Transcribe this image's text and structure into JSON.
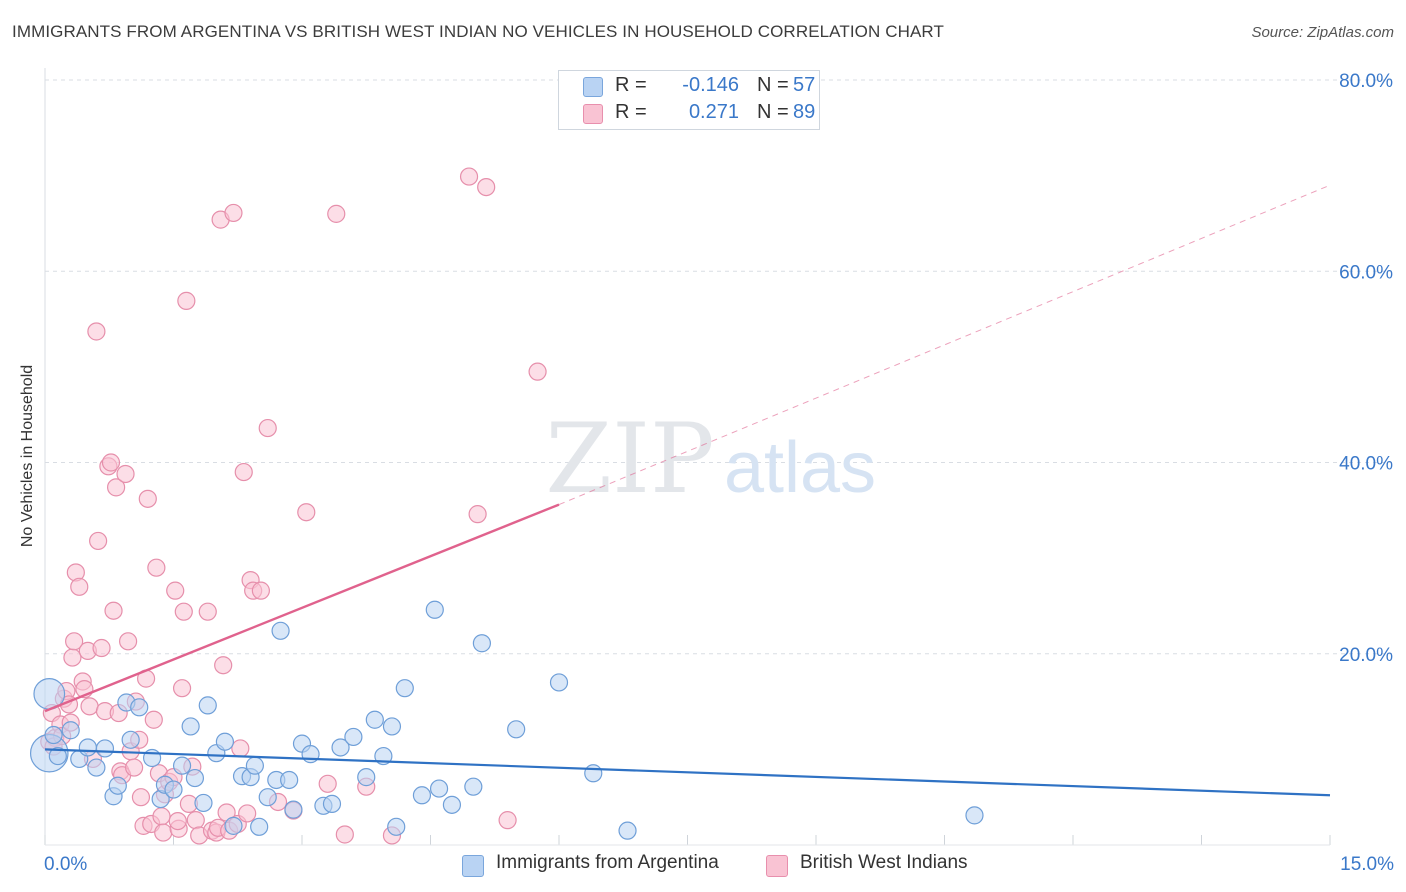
{
  "title": "IMMIGRANTS FROM ARGENTINA VS BRITISH WEST INDIAN NO VEHICLES IN HOUSEHOLD CORRELATION CHART",
  "source": "Source: ZipAtlas.com",
  "watermark": {
    "zip": "ZIP",
    "atlas": "atlas"
  },
  "legend_top": {
    "rows": [
      {
        "r_label": "R =",
        "r_value": "-0.146",
        "n_label": "N =",
        "n_value": "57"
      },
      {
        "r_label": "R =",
        "r_value": "0.271",
        "n_label": "N =",
        "n_value": "89"
      }
    ]
  },
  "legend_bottom": {
    "items": [
      "Immigrants from Argentina",
      "British West Indians"
    ]
  },
  "colors": {
    "blue_fill": "#b9d3f3",
    "blue_stroke": "#6f9fd8",
    "blue_line": "#2f72c4",
    "pink_fill": "#f9c3d3",
    "pink_stroke": "#e68fab",
    "pink_line": "#e0628d",
    "grid": "#d9dde3",
    "tick_label": "#3a78c9"
  },
  "chart_data": {
    "type": "scatter",
    "title": "IMMIGRANTS FROM ARGENTINA VS BRITISH WEST INDIAN NO VEHICLES IN HOUSEHOLD CORRELATION CHART",
    "xlabel": "",
    "ylabel": "No Vehicles in Household",
    "xlim": [
      0,
      15
    ],
    "ylim": [
      0,
      80
    ],
    "x_tick_labels": [
      "0.0%",
      "15.0%"
    ],
    "y_ticks": [
      20,
      40,
      60,
      80
    ],
    "y_tick_labels": [
      "20.0%",
      "40.0%",
      "60.0%",
      "80.0%"
    ],
    "grid": true,
    "series": [
      {
        "name": "Immigrants from Argentina",
        "r": -0.146,
        "n": 57,
        "trend": {
          "x": [
            0,
            15
          ],
          "y": [
            10.0,
            5.2
          ],
          "dashed_extension": false
        },
        "points": [
          {
            "x": 0.05,
            "y": 15.8,
            "s": 1.8
          },
          {
            "x": 0.05,
            "y": 9.6,
            "s": 2.2
          },
          {
            "x": 0.1,
            "y": 11.5
          },
          {
            "x": 0.15,
            "y": 9.3
          },
          {
            "x": 0.3,
            "y": 12.0
          },
          {
            "x": 0.4,
            "y": 9.0
          },
          {
            "x": 0.5,
            "y": 10.2
          },
          {
            "x": 0.6,
            "y": 8.1
          },
          {
            "x": 0.7,
            "y": 10.1
          },
          {
            "x": 0.8,
            "y": 5.1
          },
          {
            "x": 0.85,
            "y": 6.2
          },
          {
            "x": 0.95,
            "y": 14.9
          },
          {
            "x": 1.0,
            "y": 11.0
          },
          {
            "x": 1.1,
            "y": 14.4
          },
          {
            "x": 1.25,
            "y": 9.1
          },
          {
            "x": 1.35,
            "y": 4.8
          },
          {
            "x": 1.4,
            "y": 6.3
          },
          {
            "x": 1.5,
            "y": 5.8
          },
          {
            "x": 1.6,
            "y": 8.3
          },
          {
            "x": 1.7,
            "y": 12.4
          },
          {
            "x": 1.75,
            "y": 7.0
          },
          {
            "x": 1.85,
            "y": 4.4
          },
          {
            "x": 1.9,
            "y": 14.6
          },
          {
            "x": 2.0,
            "y": 9.6
          },
          {
            "x": 2.1,
            "y": 10.8
          },
          {
            "x": 2.2,
            "y": 2.0
          },
          {
            "x": 2.3,
            "y": 7.2
          },
          {
            "x": 2.4,
            "y": 7.1
          },
          {
            "x": 2.45,
            "y": 8.3
          },
          {
            "x": 2.5,
            "y": 1.9
          },
          {
            "x": 2.6,
            "y": 5.0
          },
          {
            "x": 2.7,
            "y": 6.8
          },
          {
            "x": 2.75,
            "y": 22.4
          },
          {
            "x": 2.85,
            "y": 6.8
          },
          {
            "x": 2.9,
            "y": 3.7
          },
          {
            "x": 3.0,
            "y": 10.6
          },
          {
            "x": 3.1,
            "y": 9.5
          },
          {
            "x": 3.25,
            "y": 4.1
          },
          {
            "x": 3.35,
            "y": 4.3
          },
          {
            "x": 3.45,
            "y": 10.2
          },
          {
            "x": 3.6,
            "y": 11.3
          },
          {
            "x": 3.75,
            "y": 7.1
          },
          {
            "x": 3.85,
            "y": 13.1
          },
          {
            "x": 3.95,
            "y": 9.3
          },
          {
            "x": 4.05,
            "y": 12.4
          },
          {
            "x": 4.1,
            "y": 1.9
          },
          {
            "x": 4.2,
            "y": 16.4
          },
          {
            "x": 4.4,
            "y": 5.2
          },
          {
            "x": 4.55,
            "y": 24.6
          },
          {
            "x": 4.6,
            "y": 5.9
          },
          {
            "x": 4.75,
            "y": 4.2
          },
          {
            "x": 5.0,
            "y": 6.1
          },
          {
            "x": 5.1,
            "y": 21.1
          },
          {
            "x": 5.5,
            "y": 12.1
          },
          {
            "x": 6.0,
            "y": 17.0
          },
          {
            "x": 6.4,
            "y": 7.5
          },
          {
            "x": 6.8,
            "y": 1.5
          },
          {
            "x": 10.85,
            "y": 3.1
          }
        ]
      },
      {
        "name": "British West Indians",
        "r": 0.271,
        "n": 89,
        "trend": {
          "x": [
            0,
            6.0
          ],
          "y": [
            14.0,
            35.6
          ],
          "extension": {
            "x": [
              6.0,
              15.0
            ],
            "y": [
              35.6,
              69.0
            ]
          }
        },
        "points": [
          {
            "x": 0.05,
            "y": 10.8
          },
          {
            "x": 0.08,
            "y": 13.8
          },
          {
            "x": 0.12,
            "y": 11.2
          },
          {
            "x": 0.18,
            "y": 12.6
          },
          {
            "x": 0.22,
            "y": 15.3
          },
          {
            "x": 0.25,
            "y": 16.1
          },
          {
            "x": 0.28,
            "y": 14.7
          },
          {
            "x": 0.32,
            "y": 19.6
          },
          {
            "x": 0.34,
            "y": 21.3
          },
          {
            "x": 0.36,
            "y": 28.5
          },
          {
            "x": 0.4,
            "y": 27.0
          },
          {
            "x": 0.44,
            "y": 17.1
          },
          {
            "x": 0.46,
            "y": 16.3
          },
          {
            "x": 0.5,
            "y": 20.3
          },
          {
            "x": 0.52,
            "y": 14.5
          },
          {
            "x": 0.56,
            "y": 9.0
          },
          {
            "x": 0.6,
            "y": 53.7
          },
          {
            "x": 0.62,
            "y": 31.8
          },
          {
            "x": 0.66,
            "y": 20.6
          },
          {
            "x": 0.7,
            "y": 14.0
          },
          {
            "x": 0.74,
            "y": 39.6
          },
          {
            "x": 0.77,
            "y": 40.0
          },
          {
            "x": 0.8,
            "y": 24.5
          },
          {
            "x": 0.83,
            "y": 37.4
          },
          {
            "x": 0.86,
            "y": 13.8
          },
          {
            "x": 0.88,
            "y": 7.7
          },
          {
            "x": 0.9,
            "y": 7.3
          },
          {
            "x": 0.94,
            "y": 38.8
          },
          {
            "x": 0.97,
            "y": 21.3
          },
          {
            "x": 1.0,
            "y": 9.8
          },
          {
            "x": 1.04,
            "y": 8.1
          },
          {
            "x": 1.06,
            "y": 15.0
          },
          {
            "x": 1.1,
            "y": 11.0
          },
          {
            "x": 1.12,
            "y": 5.0
          },
          {
            "x": 1.15,
            "y": 2.0
          },
          {
            "x": 1.18,
            "y": 17.4
          },
          {
            "x": 1.2,
            "y": 36.2
          },
          {
            "x": 1.24,
            "y": 2.2
          },
          {
            "x": 1.27,
            "y": 13.1
          },
          {
            "x": 1.3,
            "y": 29.0
          },
          {
            "x": 1.33,
            "y": 7.5
          },
          {
            "x": 1.36,
            "y": 3.0
          },
          {
            "x": 1.38,
            "y": 1.3
          },
          {
            "x": 1.4,
            "y": 5.3
          },
          {
            "x": 1.45,
            "y": 6.6
          },
          {
            "x": 1.5,
            "y": 7.1
          },
          {
            "x": 1.52,
            "y": 26.6
          },
          {
            "x": 1.56,
            "y": 1.7
          },
          {
            "x": 1.6,
            "y": 16.4
          },
          {
            "x": 1.62,
            "y": 24.4
          },
          {
            "x": 1.65,
            "y": 56.9
          },
          {
            "x": 1.68,
            "y": 4.3
          },
          {
            "x": 1.72,
            "y": 8.2
          },
          {
            "x": 1.76,
            "y": 2.6
          },
          {
            "x": 1.8,
            "y": 1.0
          },
          {
            "x": 1.9,
            "y": 24.4
          },
          {
            "x": 1.95,
            "y": 1.5
          },
          {
            "x": 2.0,
            "y": 1.3
          },
          {
            "x": 2.02,
            "y": 1.8
          },
          {
            "x": 2.05,
            "y": 65.4
          },
          {
            "x": 2.08,
            "y": 18.8
          },
          {
            "x": 2.12,
            "y": 3.4
          },
          {
            "x": 2.15,
            "y": 1.5
          },
          {
            "x": 2.2,
            "y": 66.1
          },
          {
            "x": 2.25,
            "y": 2.2
          },
          {
            "x": 2.28,
            "y": 10.1
          },
          {
            "x": 2.32,
            "y": 39.0
          },
          {
            "x": 2.36,
            "y": 3.3
          },
          {
            "x": 2.4,
            "y": 27.7
          },
          {
            "x": 2.43,
            "y": 26.6
          },
          {
            "x": 2.52,
            "y": 26.6
          },
          {
            "x": 2.6,
            "y": 43.6
          },
          {
            "x": 2.72,
            "y": 4.5
          },
          {
            "x": 2.9,
            "y": 3.6
          },
          {
            "x": 3.05,
            "y": 34.8
          },
          {
            "x": 3.3,
            "y": 6.4
          },
          {
            "x": 3.4,
            "y": 66.0
          },
          {
            "x": 3.5,
            "y": 1.1
          },
          {
            "x": 3.75,
            "y": 6.1
          },
          {
            "x": 4.05,
            "y": 1.0
          },
          {
            "x": 4.95,
            "y": 69.9
          },
          {
            "x": 5.05,
            "y": 34.6
          },
          {
            "x": 5.15,
            "y": 68.8
          },
          {
            "x": 5.4,
            "y": 2.6
          },
          {
            "x": 5.75,
            "y": 49.5
          },
          {
            "x": 0.1,
            "y": 10.3
          },
          {
            "x": 0.2,
            "y": 11.4
          },
          {
            "x": 0.3,
            "y": 12.8
          },
          {
            "x": 1.55,
            "y": 2.5
          }
        ]
      }
    ]
  }
}
